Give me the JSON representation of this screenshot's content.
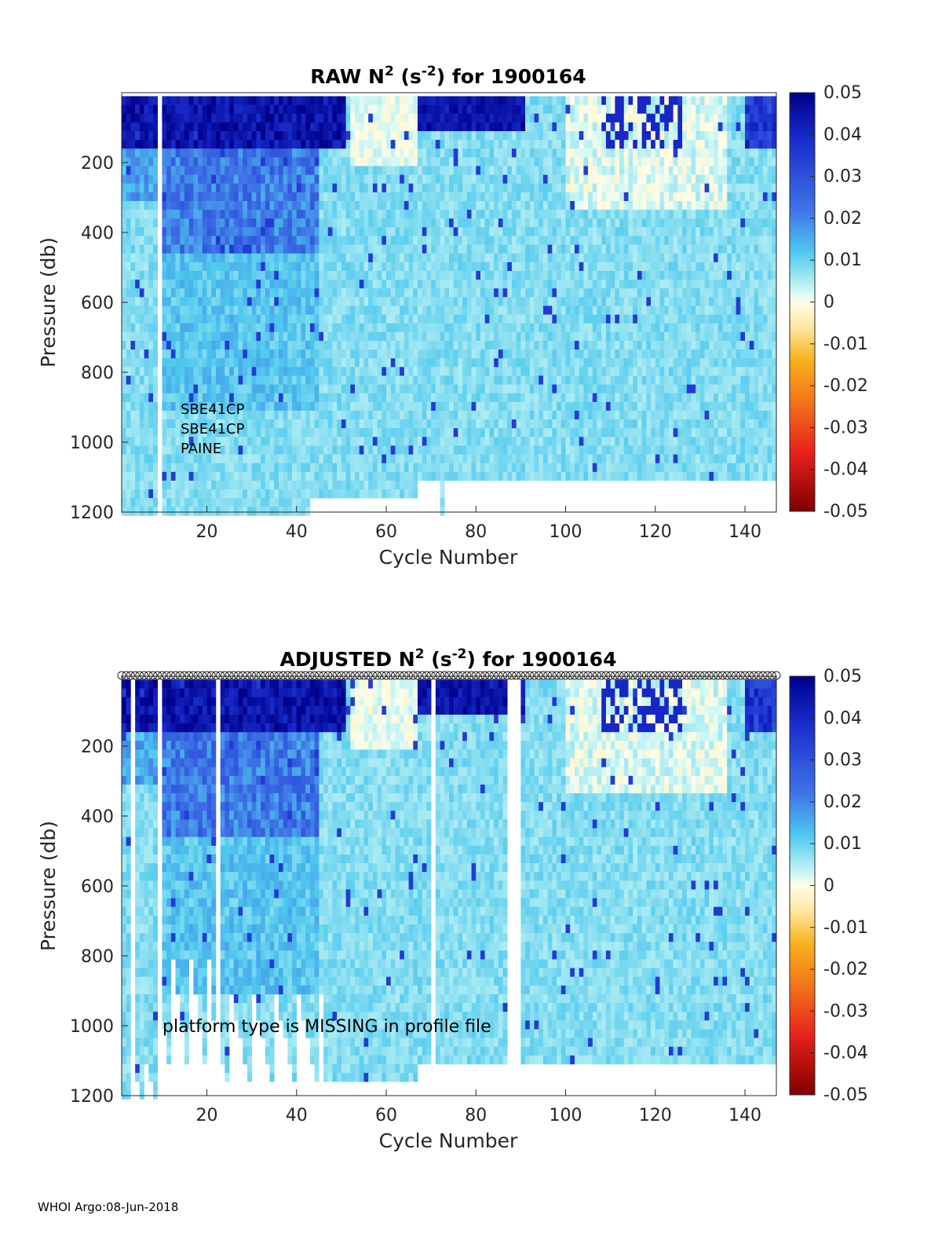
{
  "footer": "WHOI Argo:08-Jun-2018",
  "chart_data": [
    {
      "type": "heatmap",
      "title_main": "RAW N",
      "title_sup": "2",
      "title_mid": " (s",
      "title_sup2": "-2",
      "title_end": ") for 1900164",
      "xlabel": "Cycle Number",
      "ylabel": "Pressure (db)",
      "xlim": [
        1,
        147
      ],
      "ylim": [
        0,
        1200
      ],
      "y_reversed": true,
      "xticks": [
        20,
        40,
        60,
        80,
        100,
        120,
        140
      ],
      "yticks": [
        200,
        400,
        600,
        800,
        1000,
        1200
      ],
      "colorbar": {
        "min": -0.05,
        "max": 0.05,
        "ticks": [
          "0.05",
          "0.04",
          "0.03",
          "0.02",
          "0.01",
          "0",
          "-0.01",
          "-0.02",
          "-0.03",
          "-0.04",
          "-0.05"
        ],
        "colormap": "blue-cyan-white-yellow-red"
      },
      "annotations": [
        "SBE41CP",
        "SBE41CP",
        "PAINE"
      ],
      "missing_cycles": [
        9
      ],
      "depth_cutoffs_db": [
        {
          "cycles": [
            1,
            8
          ],
          "max_pressure": 1200
        },
        {
          "cycles": [
            10,
            26
          ],
          "max_pressure": 1200
        },
        {
          "cycles": [
            27,
            42
          ],
          "max_pressure": 1200
        },
        {
          "cycles": [
            43,
            51
          ],
          "max_pressure": 1150
        },
        {
          "cycles": [
            52,
            66
          ],
          "max_pressure": 1150
        },
        {
          "cycles": [
            67,
            71
          ],
          "max_pressure": 1100
        },
        {
          "cycles": [
            72,
            72
          ],
          "max_pressure": 1180
        },
        {
          "cycles": [
            73,
            146
          ],
          "max_pressure": 1100
        }
      ],
      "value_summary": [
        {
          "pressure_range": [
            0,
            150
          ],
          "cycles": [
            1,
            50
          ],
          "value": 0.045
        },
        {
          "pressure_range": [
            0,
            100
          ],
          "cycles": [
            67,
            90
          ],
          "value": 0.045
        },
        {
          "pressure_range": [
            0,
            200
          ],
          "cycles": [
            51,
            66
          ],
          "value": 0.0
        },
        {
          "pressure_range": [
            0,
            300
          ],
          "cycles": [
            100,
            135
          ],
          "value": 0.0
        },
        {
          "pressure_range": [
            150,
            450
          ],
          "cycles": [
            10,
            44
          ],
          "value": 0.025
        },
        {
          "pressure_range": [
            450,
            1100
          ],
          "cycles": [
            1,
            146
          ],
          "value": 0.008
        }
      ]
    },
    {
      "type": "heatmap",
      "title_main": "ADJUSTED N",
      "title_sup": "2",
      "title_mid": " (s",
      "title_sup2": "-2",
      "title_end": ") for 1900164",
      "xlabel": "Cycle Number",
      "ylabel": "Pressure (db)",
      "xlim": [
        1,
        147
      ],
      "ylim": [
        0,
        1200
      ],
      "y_reversed": true,
      "xticks": [
        20,
        40,
        60,
        80,
        100,
        120,
        140
      ],
      "yticks": [
        200,
        400,
        600,
        800,
        1000,
        1200
      ],
      "colorbar": {
        "min": -0.05,
        "max": 0.05,
        "ticks": [
          "0.05",
          "0.04",
          "0.03",
          "0.02",
          "0.01",
          "0",
          "-0.01",
          "-0.02",
          "-0.03",
          "-0.04",
          "-0.05"
        ],
        "colormap": "blue-cyan-white-yellow-red"
      },
      "top_marker": "o",
      "annotations": [
        "platform type is MISSING in profile file"
      ],
      "missing_cycles": [
        3,
        9,
        22,
        70,
        87,
        88,
        89
      ],
      "value_summary": [
        {
          "pressure_range": [
            0,
            150
          ],
          "cycles": [
            1,
            50
          ],
          "value": 0.045
        },
        {
          "pressure_range": [
            0,
            100
          ],
          "cycles": [
            71,
            86
          ],
          "value": 0.045
        },
        {
          "pressure_range": [
            0,
            300
          ],
          "cycles": [
            100,
            135
          ],
          "value": 0.0
        },
        {
          "pressure_range": [
            150,
            450
          ],
          "cycles": [
            10,
            44
          ],
          "value": 0.025
        },
        {
          "pressure_range": [
            450,
            1100
          ],
          "cycles": [
            1,
            146
          ],
          "value": 0.008
        }
      ]
    }
  ]
}
